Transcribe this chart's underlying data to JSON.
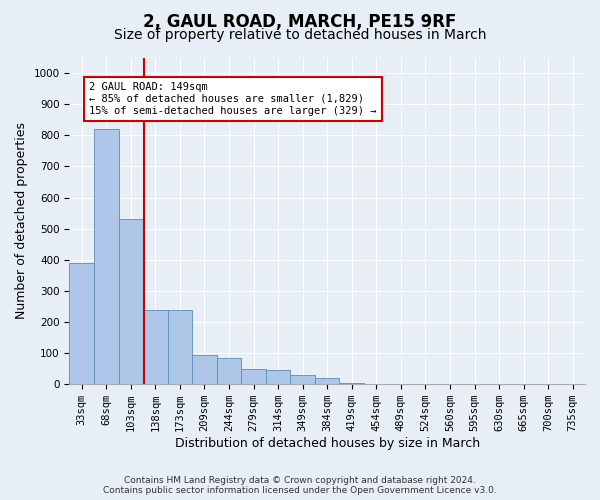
{
  "title1": "2, GAUL ROAD, MARCH, PE15 9RF",
  "title2": "Size of property relative to detached houses in March",
  "xlabel": "Distribution of detached houses by size in March",
  "ylabel": "Number of detached properties",
  "bin_labels": [
    "33sqm",
    "68sqm",
    "103sqm",
    "138sqm",
    "173sqm",
    "209sqm",
    "244sqm",
    "279sqm",
    "314sqm",
    "349sqm",
    "384sqm",
    "419sqm",
    "454sqm",
    "489sqm",
    "524sqm",
    "560sqm",
    "595sqm",
    "630sqm",
    "665sqm",
    "700sqm",
    "735sqm"
  ],
  "bar_heights": [
    390,
    820,
    530,
    240,
    240,
    95,
    85,
    50,
    45,
    30,
    20,
    5,
    0,
    0,
    0,
    0,
    0,
    0,
    0,
    0,
    0
  ],
  "bar_color": "#aec6e8",
  "bar_edge_color": "#5b8db8",
  "vline_pos": 2.55,
  "vline_color": "#cc0000",
  "annotation_text": "2 GAUL ROAD: 149sqm\n← 85% of detached houses are smaller (1,829)\n15% of semi-detached houses are larger (329) →",
  "annotation_box_facecolor": "#ffffff",
  "annotation_box_edgecolor": "#cc0000",
  "ylim": [
    0,
    1050
  ],
  "yticks": [
    0,
    100,
    200,
    300,
    400,
    500,
    600,
    700,
    800,
    900,
    1000
  ],
  "footer1": "Contains HM Land Registry data © Crown copyright and database right 2024.",
  "footer2": "Contains public sector information licensed under the Open Government Licence v3.0.",
  "bg_color": "#e8eef5",
  "grid_color": "#ffffff",
  "title1_fontsize": 12,
  "title2_fontsize": 10,
  "tick_fontsize": 7.5,
  "label_fontsize": 9,
  "footer_fontsize": 6.5
}
